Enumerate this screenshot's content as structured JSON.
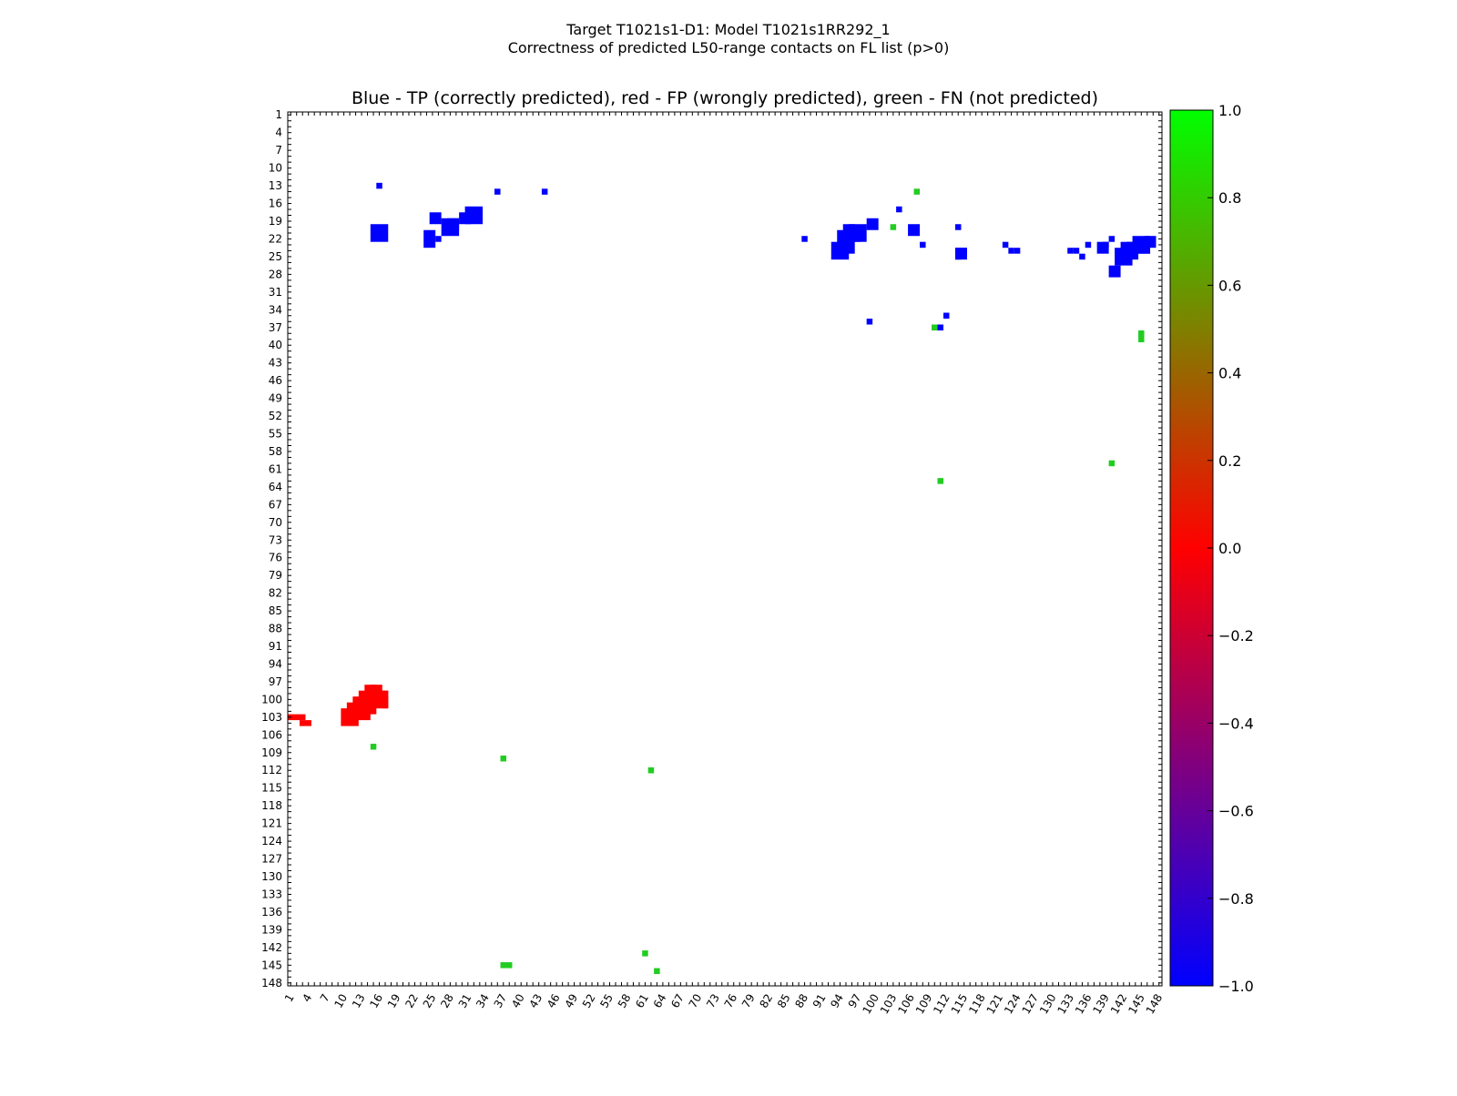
{
  "figure": {
    "suptitle_line1": "Target T1021s1-D1: Model T1021s1RR292_1",
    "suptitle_line2": "Correctness of predicted L50-range contacts on FL list (p>0)",
    "title": "Blue - TP (correctly predicted), red - FP (wrongly predicted), green - FN (not predicted)"
  },
  "chart_data": {
    "type": "heatmap",
    "n": 148,
    "x_ticks": [
      1,
      4,
      7,
      10,
      13,
      16,
      19,
      22,
      25,
      28,
      31,
      34,
      37,
      40,
      43,
      46,
      49,
      52,
      55,
      58,
      61,
      64,
      67,
      70,
      73,
      76,
      79,
      82,
      85,
      88,
      91,
      94,
      97,
      100,
      103,
      106,
      109,
      112,
      115,
      118,
      121,
      124,
      127,
      130,
      133,
      136,
      139,
      142,
      145,
      148
    ],
    "y_ticks": [
      1,
      4,
      7,
      10,
      13,
      16,
      19,
      22,
      25,
      28,
      31,
      34,
      37,
      40,
      43,
      46,
      49,
      52,
      55,
      58,
      61,
      64,
      67,
      70,
      73,
      76,
      79,
      82,
      85,
      88,
      91,
      94,
      97,
      100,
      103,
      106,
      109,
      112,
      115,
      118,
      121,
      124,
      127,
      130,
      133,
      136,
      139,
      142,
      145,
      148
    ],
    "colorbar": {
      "ticks": [
        "1.0",
        "0.8",
        "0.6",
        "0.4",
        "0.2",
        "0.0",
        "−0.2",
        "−0.4",
        "−0.6",
        "−0.8",
        "−1.0"
      ],
      "min": -1.0,
      "max": 1.0,
      "colors": {
        "top": "#00ff00",
        "middle": "#ff0000",
        "bottom": "#0000ff"
      }
    },
    "legend": {
      "TP": "blue",
      "FP": "red",
      "FN": "green"
    },
    "colors": {
      "TP": "#0000ff",
      "FP": "#ff0000",
      "FN": "#22cc22"
    },
    "tp_rects": [
      [
        16,
        13,
        1,
        1
      ],
      [
        15,
        20,
        3,
        3
      ],
      [
        24,
        21,
        2,
        3
      ],
      [
        25,
        18,
        2,
        2
      ],
      [
        26,
        22,
        1,
        1
      ],
      [
        27,
        19,
        3,
        3
      ],
      [
        28,
        19,
        2,
        2
      ],
      [
        30,
        18,
        2,
        2
      ],
      [
        31,
        17,
        3,
        3
      ],
      [
        36,
        14,
        1,
        1
      ],
      [
        44,
        14,
        1,
        1
      ],
      [
        88,
        22,
        1,
        1
      ],
      [
        93,
        23,
        3,
        3
      ],
      [
        94,
        21,
        3,
        4
      ],
      [
        95,
        20,
        2,
        3
      ],
      [
        96,
        20,
        3,
        3
      ],
      [
        97,
        22,
        1,
        1
      ],
      [
        99,
        19,
        2,
        2
      ],
      [
        99,
        36,
        1,
        1
      ],
      [
        104,
        17,
        1,
        1
      ],
      [
        106,
        20,
        2,
        2
      ],
      [
        108,
        23,
        1,
        1
      ],
      [
        111,
        37,
        1,
        1
      ],
      [
        112,
        35,
        1,
        1
      ],
      [
        114,
        20,
        1,
        1
      ],
      [
        114,
        24,
        1,
        1
      ],
      [
        114,
        24,
        2,
        2
      ],
      [
        114,
        25,
        1,
        1
      ],
      [
        115,
        24,
        1,
        1
      ],
      [
        122,
        23,
        1,
        1
      ],
      [
        123,
        24,
        1,
        1
      ],
      [
        124,
        24,
        1,
        1
      ],
      [
        133,
        24,
        1,
        1
      ],
      [
        134,
        24,
        1,
        1
      ],
      [
        135,
        25,
        1,
        1
      ],
      [
        136,
        23,
        1,
        1
      ],
      [
        138,
        23,
        2,
        2
      ],
      [
        139,
        23,
        1,
        1
      ],
      [
        140,
        22,
        1,
        1
      ],
      [
        140,
        27,
        2,
        2
      ],
      [
        141,
        24,
        3,
        3
      ],
      [
        142,
        23,
        3,
        3
      ],
      [
        143,
        23,
        2,
        2
      ],
      [
        144,
        22,
        3,
        3
      ],
      [
        145,
        23,
        2,
        2
      ],
      [
        146,
        22,
        2,
        2
      ]
    ],
    "fp_rects": [
      [
        1,
        103,
        3,
        1
      ],
      [
        3,
        104,
        2,
        1
      ],
      [
        10,
        102,
        3,
        3
      ],
      [
        11,
        101,
        4,
        3
      ],
      [
        12,
        100,
        4,
        3
      ],
      [
        13,
        99,
        5,
        3
      ],
      [
        14,
        98,
        3,
        2
      ],
      [
        15,
        98,
        1,
        1
      ],
      [
        15,
        99,
        3,
        2
      ],
      [
        16,
        100,
        2,
        2
      ],
      [
        17,
        101,
        1,
        1
      ]
    ],
    "fn_rects": [
      [
        15,
        108,
        1,
        1
      ],
      [
        37,
        110,
        1,
        1
      ],
      [
        62,
        112,
        1,
        1
      ],
      [
        61,
        143,
        1,
        1
      ],
      [
        63,
        146,
        1,
        1
      ],
      [
        37,
        145,
        2,
        1
      ],
      [
        103,
        20,
        1,
        1
      ],
      [
        107,
        14,
        1,
        1
      ],
      [
        110,
        37,
        1,
        1
      ],
      [
        111,
        63,
        1,
        1
      ],
      [
        140,
        60,
        1,
        1
      ],
      [
        145,
        38,
        1,
        2
      ]
    ]
  }
}
